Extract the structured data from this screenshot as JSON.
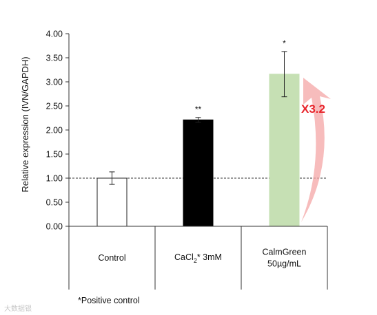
{
  "chart_data": {
    "type": "bar",
    "ylabel": "Relative expression (IVN/GAPDH)",
    "ylim": [
      0,
      4
    ],
    "yticks": [
      "0.00",
      "0.50",
      "1.00",
      "1.50",
      "2.00",
      "2.50",
      "3.00",
      "3.50",
      "4.00"
    ],
    "categories": [
      {
        "lines": [
          "Control"
        ],
        "subscript": null
      },
      {
        "lines": [
          "CaCl2* 3mM"
        ],
        "parts": [
          "CaCl",
          "2",
          "* 3mM"
        ]
      },
      {
        "lines": [
          "CalmGreen",
          "50µg/mL"
        ]
      }
    ],
    "values": [
      1.0,
      2.21,
      3.16
    ],
    "error": [
      0.13,
      0.05,
      0.47
    ],
    "significance": [
      "",
      "**",
      "*"
    ],
    "colors": [
      "#ffffff",
      "#000000",
      "#c6e0b4"
    ],
    "reference_line": 1.0,
    "fold_change_label": "X3.2",
    "arrow_color": "#f4a6a6",
    "fold_color": "#e8242b"
  },
  "footnote": "*Positive control",
  "watermark": "大数据银"
}
